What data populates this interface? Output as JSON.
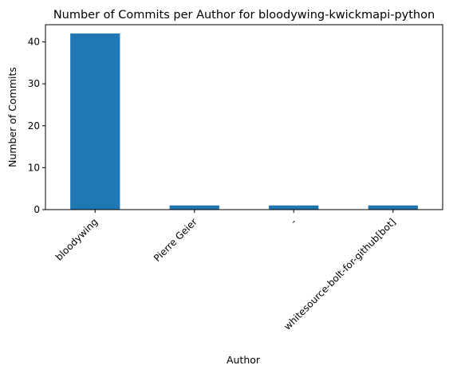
{
  "chart_data": {
    "type": "bar",
    "title": "Number of Commits per Author for bloodywing-kwickmapi-python",
    "xlabel": "Author",
    "ylabel": "Number of Commits",
    "categories": [
      "bloodywing",
      "Pierre Geier",
      "-",
      "whitesource-bolt-for-github[bot]"
    ],
    "values": [
      42,
      1,
      1,
      1
    ],
    "ylim": [
      0,
      44.1
    ],
    "yticks": [
      0,
      10,
      20,
      30,
      40
    ],
    "grid": false,
    "legend": "none",
    "bar_color": "#1f77b4"
  }
}
